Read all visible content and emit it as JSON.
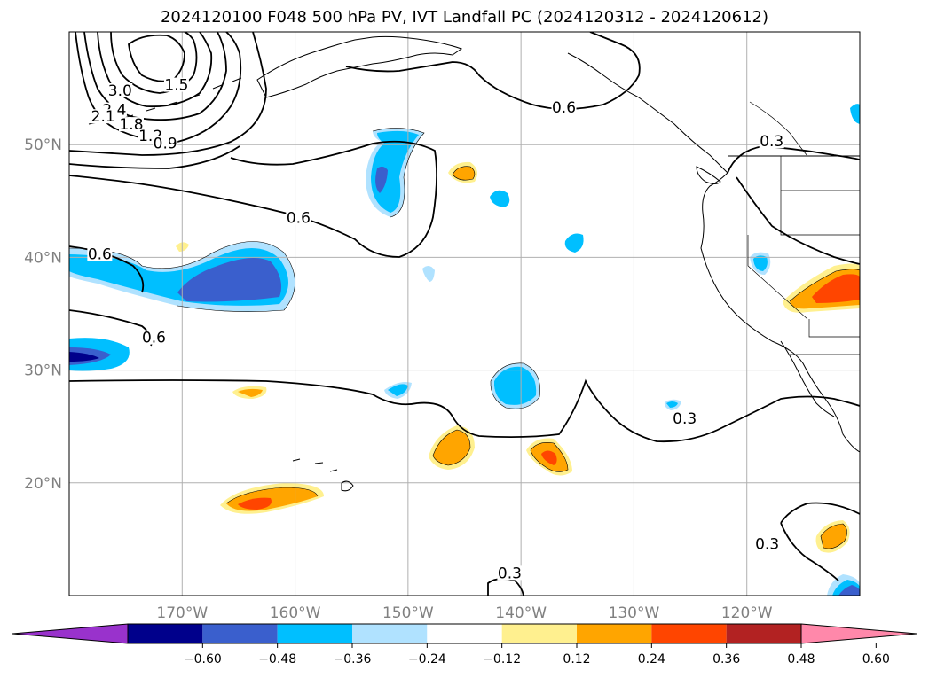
{
  "title": "2024120100 F048 500 hPa PV, IVT Landfall PC (2024120312 - 2024120612)",
  "map": {
    "lon_min": -180,
    "lon_max": -110,
    "lat_min": 10,
    "lat_max": 60,
    "lat_ticks": [
      {
        "value": 20,
        "label": "20°N"
      },
      {
        "value": 30,
        "label": "30°N"
      },
      {
        "value": 40,
        "label": "40°N"
      },
      {
        "value": 50,
        "label": "50°N"
      }
    ],
    "lon_ticks": [
      {
        "value": -170,
        "label": "170°W"
      },
      {
        "value": -160,
        "label": "160°W"
      },
      {
        "value": -150,
        "label": "150°W"
      },
      {
        "value": -140,
        "label": "140°W"
      },
      {
        "value": -130,
        "label": "130°W"
      },
      {
        "value": -120,
        "label": "120°W"
      }
    ],
    "contour_labels": [
      {
        "text": "3.0",
        "lon": -175.5,
        "lat": 54.5
      },
      {
        "text": "1.5",
        "lon": -170.5,
        "lat": 55.0
      },
      {
        "text": "2.4",
        "lon": -176.0,
        "lat": 52.8
      },
      {
        "text": "2.1",
        "lon": -177.0,
        "lat": 52.2
      },
      {
        "text": "1.8",
        "lon": -174.5,
        "lat": 51.5
      },
      {
        "text": "1.2",
        "lon": -172.8,
        "lat": 50.5
      },
      {
        "text": "0.9",
        "lon": -171.5,
        "lat": 49.8
      },
      {
        "text": "0.6",
        "lon": -136.2,
        "lat": 53.0
      },
      {
        "text": "0.3",
        "lon": -117.8,
        "lat": 50.0
      },
      {
        "text": "0.6",
        "lon": -159.7,
        "lat": 43.2
      },
      {
        "text": "0.6",
        "lon": -177.3,
        "lat": 40.0
      },
      {
        "text": "0.6",
        "lon": -172.5,
        "lat": 32.6
      },
      {
        "text": "0.3",
        "lon": -125.5,
        "lat": 25.4
      },
      {
        "text": "0.3",
        "lon": -118.2,
        "lat": 14.3
      },
      {
        "text": "0.3",
        "lon": -141.0,
        "lat": 11.7
      }
    ],
    "colors": {
      "land_outline": "#000000",
      "grid": "#b0b0b0",
      "contour": "#000000"
    }
  },
  "colorbar": {
    "colors": [
      "#9932cc",
      "#00008b",
      "#3a5fcd",
      "#00bfff",
      "#b0e2ff",
      "#ffffff",
      "#fff08f",
      "#ffa500",
      "#ff4500",
      "#b22222",
      "#ff88aa"
    ],
    "tick_labels": [
      "−0.60",
      "−0.48",
      "−0.36",
      "−0.24",
      "−0.12",
      "0.12",
      "0.24",
      "0.36",
      "0.48",
      "0.60"
    ]
  }
}
